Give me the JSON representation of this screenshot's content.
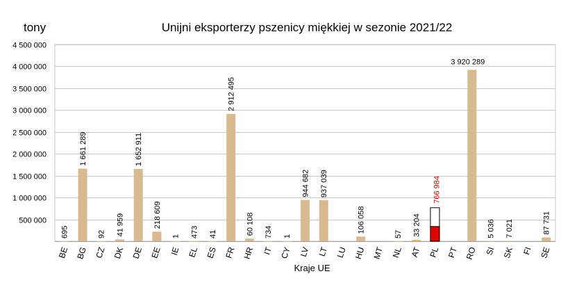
{
  "chart_data": {
    "type": "bar",
    "title": "Unijni eksporterzy pszenicy miękkiej w sezonie 2021/22",
    "unit_label": "tony",
    "xlabel": "Kraje UE",
    "ylim": [
      0,
      4500000
    ],
    "ytick_values": [
      500000,
      1000000,
      1500000,
      2000000,
      2500000,
      3000000,
      3500000,
      4000000,
      4500000
    ],
    "ytick_labels": [
      "500 000",
      "1 000 000",
      "1 500 000",
      "2 000 000",
      "2 500 000",
      "3 000 000",
      "3 500 000",
      "4 000 000",
      "4 500 000"
    ],
    "grid": true,
    "categories": [
      "BE",
      "BG",
      "CZ",
      "DK",
      "DE",
      "EE",
      "IE",
      "EL",
      "ES",
      "FR",
      "HR",
      "IT",
      "CY",
      "LV",
      "LT",
      "LU",
      "HU",
      "MT",
      "NL",
      "AT",
      "PL",
      "PT",
      "RO",
      "SI",
      "SK",
      "FI",
      "SE"
    ],
    "values": [
      695,
      1661289,
      92,
      41959,
      1652911,
      218609,
      1,
      473,
      41,
      2912495,
      60108,
      734,
      1,
      944682,
      937039,
      0,
      106058,
      0,
      57,
      33204,
      766984,
      0,
      3920289,
      5036,
      7021,
      0,
      87731
    ],
    "labels": [
      "695",
      "1 661 289",
      "92",
      "41 959",
      "1 652 911",
      "218 609",
      "1",
      "473",
      "41",
      "2 912 495",
      "60 108",
      "734",
      "1",
      "944 682",
      "937 039",
      "",
      "106 058",
      "",
      "57",
      "33 204",
      "766 984",
      "",
      "3 920 289",
      "5 036",
      "7 021",
      "",
      "87 731"
    ],
    "highlight": {
      "category": "PL",
      "filled_fraction": 0.44,
      "fill_color": "#e00000",
      "label_color": "#e00000"
    },
    "bar_color": "#d9b98f",
    "grid_color": "#c8c8c8"
  }
}
